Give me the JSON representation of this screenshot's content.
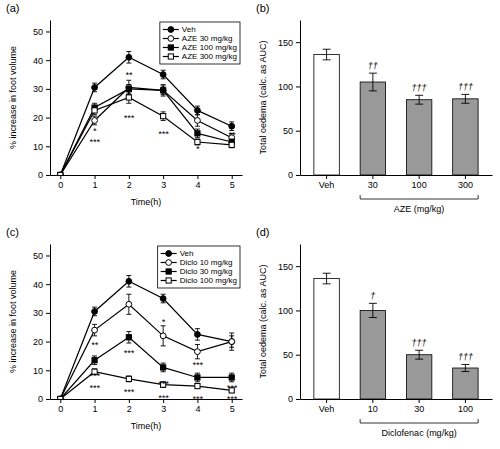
{
  "chart_data": [
    {
      "type": "line",
      "title": "(a)",
      "xlabel": "Time(h)",
      "ylabel": "% increase in foot volume",
      "x": [
        0,
        1,
        2,
        3,
        4,
        5
      ],
      "xlim": [
        -0.3,
        5.3
      ],
      "xticks": [
        0,
        1,
        2,
        3,
        4,
        5
      ],
      "ylim": [
        0,
        54
      ],
      "yticks": [
        0,
        10,
        20,
        30,
        40,
        50
      ],
      "legend": "upper right",
      "series": [
        {
          "name": "Veh",
          "color": "black",
          "marker": "circle",
          "values": [
            0,
            30.5,
            41.0,
            35.0,
            22.5,
            17.0
          ],
          "errors": [
            0,
            1.5,
            2.0,
            1.5,
            1.5,
            1.5
          ]
        },
        {
          "name": "AZE 30 mg/kg",
          "color": "black",
          "marker": "circle-open",
          "values": [
            0,
            19.0,
            30.5,
            29.5,
            19.0,
            13.0
          ],
          "errors": [
            0,
            1.5,
            2.5,
            2.0,
            2.0,
            1.5
          ]
        },
        {
          "name": "AZE 100 mg/kg",
          "color": "black",
          "marker": "square",
          "values": [
            0,
            23.5,
            30.0,
            29.5,
            14.5,
            11.5
          ],
          "errors": [
            0,
            1.5,
            1.5,
            1.5,
            1.5,
            1.0
          ]
        },
        {
          "name": "AZE 300 mg/kg",
          "color": "black",
          "marker": "square-open",
          "values": [
            0,
            22.5,
            27.0,
            20.5,
            11.5,
            10.5
          ],
          "errors": [
            0,
            1.5,
            2.0,
            1.5,
            1.0,
            1.0
          ]
        }
      ],
      "annotations": [
        {
          "x": 1,
          "y": 14.0,
          "text": "*"
        },
        {
          "x": 1,
          "y": 10.0,
          "text": "***"
        },
        {
          "x": 2,
          "y": 33.5,
          "text": "**"
        },
        {
          "x": 2,
          "y": 18.5,
          "text": "***"
        },
        {
          "x": 3,
          "y": 13.0,
          "text": "***"
        },
        {
          "x": 4,
          "y": 7.5,
          "text": "*"
        },
        {
          "x": 5,
          "y": 12.5,
          "text": "**"
        }
      ]
    },
    {
      "type": "bar",
      "title": "(b)",
      "xlabel": "AZE (mg/kg)",
      "ylabel": "Total oedema (calc. as AUC)",
      "categories": [
        "Veh",
        "30",
        "100",
        "300"
      ],
      "values": [
        136,
        105,
        85,
        86
      ],
      "errors": [
        6,
        10,
        5,
        5
      ],
      "colors": [
        "white",
        "#999999",
        "#999999",
        "#999999"
      ],
      "ylim": [
        0,
        175
      ],
      "yticks": [
        0,
        50,
        100,
        150
      ],
      "annotations": [
        {
          "x": "30",
          "text": "††"
        },
        {
          "x": "100",
          "text": "†††"
        },
        {
          "x": "300",
          "text": "†††"
        }
      ]
    },
    {
      "type": "line",
      "title": "(c)",
      "xlabel": "Time(h)",
      "ylabel": "% increase in foot volume",
      "x": [
        0,
        1,
        2,
        3,
        4,
        5
      ],
      "xlim": [
        -0.3,
        5.3
      ],
      "xticks": [
        0,
        1,
        2,
        3,
        4,
        5
      ],
      "ylim": [
        0,
        54
      ],
      "yticks": [
        0,
        10,
        20,
        30,
        40,
        50
      ],
      "legend": "upper right",
      "series": [
        {
          "name": "Veh",
          "color": "black",
          "marker": "circle",
          "values": [
            0,
            30.5,
            41.0,
            35.0,
            22.5,
            20.0
          ],
          "errors": [
            0,
            1.5,
            2.0,
            1.5,
            2.0,
            2.0
          ]
        },
        {
          "name": "Diclo 10 mg/kg",
          "color": "black",
          "marker": "circle-open",
          "values": [
            0,
            24.0,
            33.0,
            22.0,
            16.5,
            20.0
          ],
          "errors": [
            0,
            2.0,
            3.5,
            3.5,
            2.5,
            3.0
          ]
        },
        {
          "name": "Diclo 30 mg/kg",
          "color": "black",
          "marker": "square",
          "values": [
            0,
            13.5,
            21.5,
            11.0,
            7.5,
            7.5
          ],
          "errors": [
            0,
            1.5,
            2.0,
            1.5,
            1.5,
            1.5
          ]
        },
        {
          "name": "Diclo 100 mg/kg",
          "color": "black",
          "marker": "square-open",
          "values": [
            0,
            9.5,
            7.0,
            5.0,
            4.5,
            3.0
          ],
          "errors": [
            0,
            1.0,
            1.0,
            1.0,
            0.8,
            0.8
          ]
        }
      ],
      "annotations": [
        {
          "x": 1,
          "y": 17.5,
          "text": "**"
        },
        {
          "x": 1,
          "y": 6.5,
          "text": "***"
        },
        {
          "x": 1,
          "y": 2.5,
          "text": "***"
        },
        {
          "x": 2,
          "y": 14.5,
          "text": "***"
        },
        {
          "x": 2,
          "y": 1.0,
          "text": "***"
        },
        {
          "x": 3,
          "y": 25.5,
          "text": "*"
        },
        {
          "x": 3,
          "y": 4.0,
          "text": "***"
        },
        {
          "x": 3,
          "y": -1.0,
          "text": "***"
        },
        {
          "x": 4,
          "y": 10.5,
          "text": "***"
        },
        {
          "x": 4,
          "y": -1.5,
          "text": "***"
        },
        {
          "x": 5,
          "y": -1.5,
          "text": "***"
        },
        {
          "x": 5,
          "y": 2.5,
          "text": "***"
        }
      ]
    },
    {
      "type": "bar",
      "title": "(d)",
      "xlabel": "Diclofenac (mg/kg)",
      "ylabel": "Total oedema (calc. as AUC)",
      "categories": [
        "Veh",
        "10",
        "30",
        "100"
      ],
      "values": [
        136,
        100,
        50,
        35
      ],
      "errors": [
        6,
        8,
        5,
        4
      ],
      "colors": [
        "white",
        "#999999",
        "#999999",
        "#999999"
      ],
      "ylim": [
        0,
        175
      ],
      "yticks": [
        0,
        50,
        100,
        150
      ],
      "annotations": [
        {
          "x": "10",
          "text": "†"
        },
        {
          "x": "30",
          "text": "†††"
        },
        {
          "x": "100",
          "text": "†††"
        }
      ]
    }
  ]
}
